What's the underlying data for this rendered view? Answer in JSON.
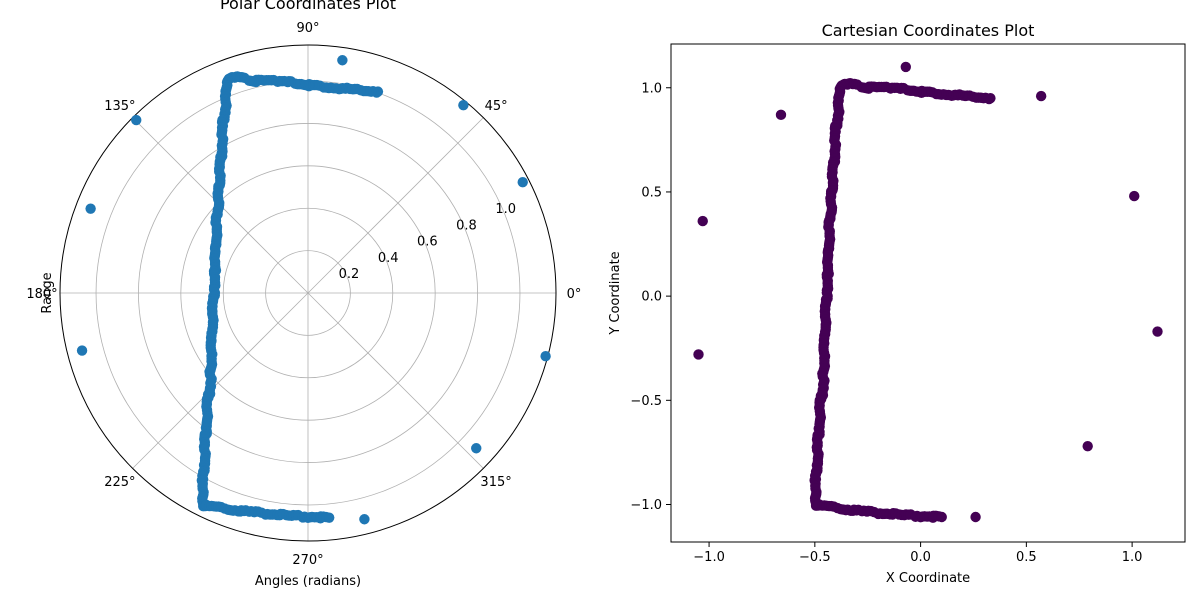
{
  "chart_data": [
    {
      "type": "scatter",
      "projection": "polar",
      "title": "Polar Coordinates Plot",
      "xlabel": "Angles (radians)",
      "ylabel": "Range",
      "color": "#1f77b4",
      "angle_ticks": [
        "0°",
        "45°",
        "90°",
        "135°",
        "180°",
        "225°",
        "270°",
        "315°"
      ],
      "radial_ticks": [
        "0.2",
        "0.4",
        "0.6",
        "0.8",
        "1.0"
      ],
      "rlim": [
        0,
        1.17
      ],
      "grid": true,
      "outlier_points_deg_r": [
        [
          81.6,
          1.11
        ],
        [
          134.8,
          1.15
        ],
        [
          158.8,
          1.1
        ],
        [
          194.3,
          1.1
        ],
        [
          27.3,
          1.14
        ],
        [
          50.4,
          1.15
        ],
        [
          345.1,
          1.16
        ],
        [
          317.3,
          1.08
        ],
        [
          284.0,
          1.1
        ]
      ],
      "path_waypoints_xy": [
        [
          0.33,
          0.95
        ],
        [
          0.0,
          0.98
        ],
        [
          -0.1,
          1.0
        ],
        [
          -0.25,
          1.0
        ],
        [
          -0.34,
          1.02
        ],
        [
          -0.37,
          1.02
        ],
        [
          -0.38,
          0.98
        ],
        [
          -0.4,
          0.8
        ],
        [
          -0.42,
          0.5
        ],
        [
          -0.43,
          0.35
        ],
        [
          -0.44,
          0.1
        ],
        [
          -0.45,
          -0.1
        ],
        [
          -0.46,
          -0.4
        ],
        [
          -0.48,
          -0.6
        ],
        [
          -0.49,
          -0.8
        ],
        [
          -0.5,
          -0.98
        ],
        [
          -0.5,
          -1.0
        ],
        [
          -0.3,
          -1.03
        ],
        [
          -0.1,
          -1.05
        ],
        [
          0.1,
          -1.06
        ]
      ]
    },
    {
      "type": "scatter",
      "title": "Cartesian Coordinates Plot",
      "xlabel": "X Coordinate",
      "ylabel": "Y Coordinate",
      "color": "#440154",
      "xlim": [
        -1.18,
        1.25
      ],
      "ylim": [
        -1.18,
        1.21
      ],
      "xticks": [
        -1.0,
        -0.5,
        0.0,
        0.5,
        1.0
      ],
      "yticks": [
        -1.0,
        -0.5,
        0.0,
        0.5,
        1.0
      ],
      "xtick_labels": [
        "−1.0",
        "−0.5",
        "0.0",
        "0.5",
        "1.0"
      ],
      "ytick_labels": [
        "−1.0",
        "−0.5",
        "0.0",
        "0.5",
        "1.0"
      ],
      "grid": false,
      "outlier_points_xy": [
        [
          -0.07,
          1.1
        ],
        [
          -0.66,
          0.87
        ],
        [
          -1.03,
          0.36
        ],
        [
          -1.05,
          -0.28
        ],
        [
          0.57,
          0.96
        ],
        [
          1.01,
          0.48
        ],
        [
          1.12,
          -0.17
        ],
        [
          0.79,
          -0.72
        ],
        [
          0.26,
          -1.06
        ]
      ],
      "path_waypoints_xy": [
        [
          0.33,
          0.95
        ],
        [
          0.0,
          0.98
        ],
        [
          -0.1,
          1.0
        ],
        [
          -0.25,
          1.0
        ],
        [
          -0.34,
          1.02
        ],
        [
          -0.37,
          1.02
        ],
        [
          -0.38,
          0.98
        ],
        [
          -0.4,
          0.8
        ],
        [
          -0.42,
          0.5
        ],
        [
          -0.43,
          0.35
        ],
        [
          -0.44,
          0.1
        ],
        [
          -0.45,
          -0.1
        ],
        [
          -0.46,
          -0.4
        ],
        [
          -0.48,
          -0.6
        ],
        [
          -0.49,
          -0.8
        ],
        [
          -0.5,
          -0.98
        ],
        [
          -0.5,
          -1.0
        ],
        [
          -0.3,
          -1.03
        ],
        [
          -0.1,
          -1.05
        ],
        [
          0.1,
          -1.06
        ]
      ]
    }
  ]
}
